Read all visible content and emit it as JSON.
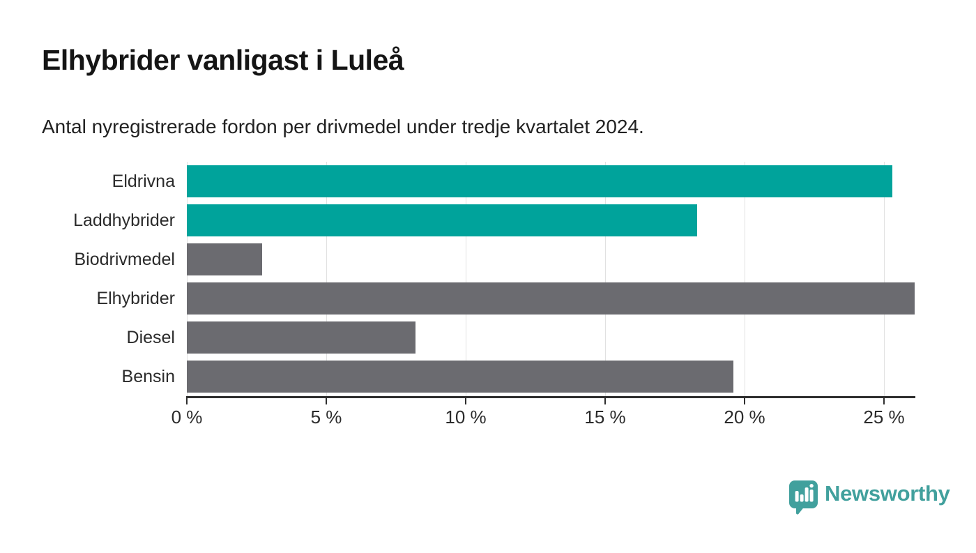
{
  "title": "Elhybrider vanligast i Luleå",
  "subtitle": "Antal nyregistrerade fordon per drivmedel under tredje kvartalet 2024.",
  "colors": {
    "highlight_bar": "#00A39B",
    "default_bar": "#6B6B70",
    "axis": "#2E2E2E",
    "gridline": "#E1E1E1",
    "logo_teal": "#41A09D"
  },
  "chart_data": {
    "type": "bar",
    "orientation": "horizontal",
    "categories": [
      "Eldrivna",
      "Laddhybrider",
      "Biodrivmedel",
      "Elhybrider",
      "Diesel",
      "Bensin"
    ],
    "values": [
      25.3,
      18.3,
      2.7,
      26.1,
      8.2,
      19.6
    ],
    "bar_colors": [
      "#00A39B",
      "#00A39B",
      "#6B6B70",
      "#6B6B70",
      "#6B6B70",
      "#6B6B70"
    ],
    "unit": "%",
    "title": "Elhybrider vanligast i Luleå",
    "xlabel": "",
    "ylabel": "",
    "xlim": [
      0,
      26.1
    ],
    "xticks": [
      0,
      5,
      10,
      15,
      20,
      25
    ],
    "xtick_labels": [
      "0 %",
      "5 %",
      "10 %",
      "15 %",
      "20 %",
      "25 %"
    ],
    "grid": true,
    "legend": false
  },
  "footer": {
    "brand": "Newsworthy"
  }
}
